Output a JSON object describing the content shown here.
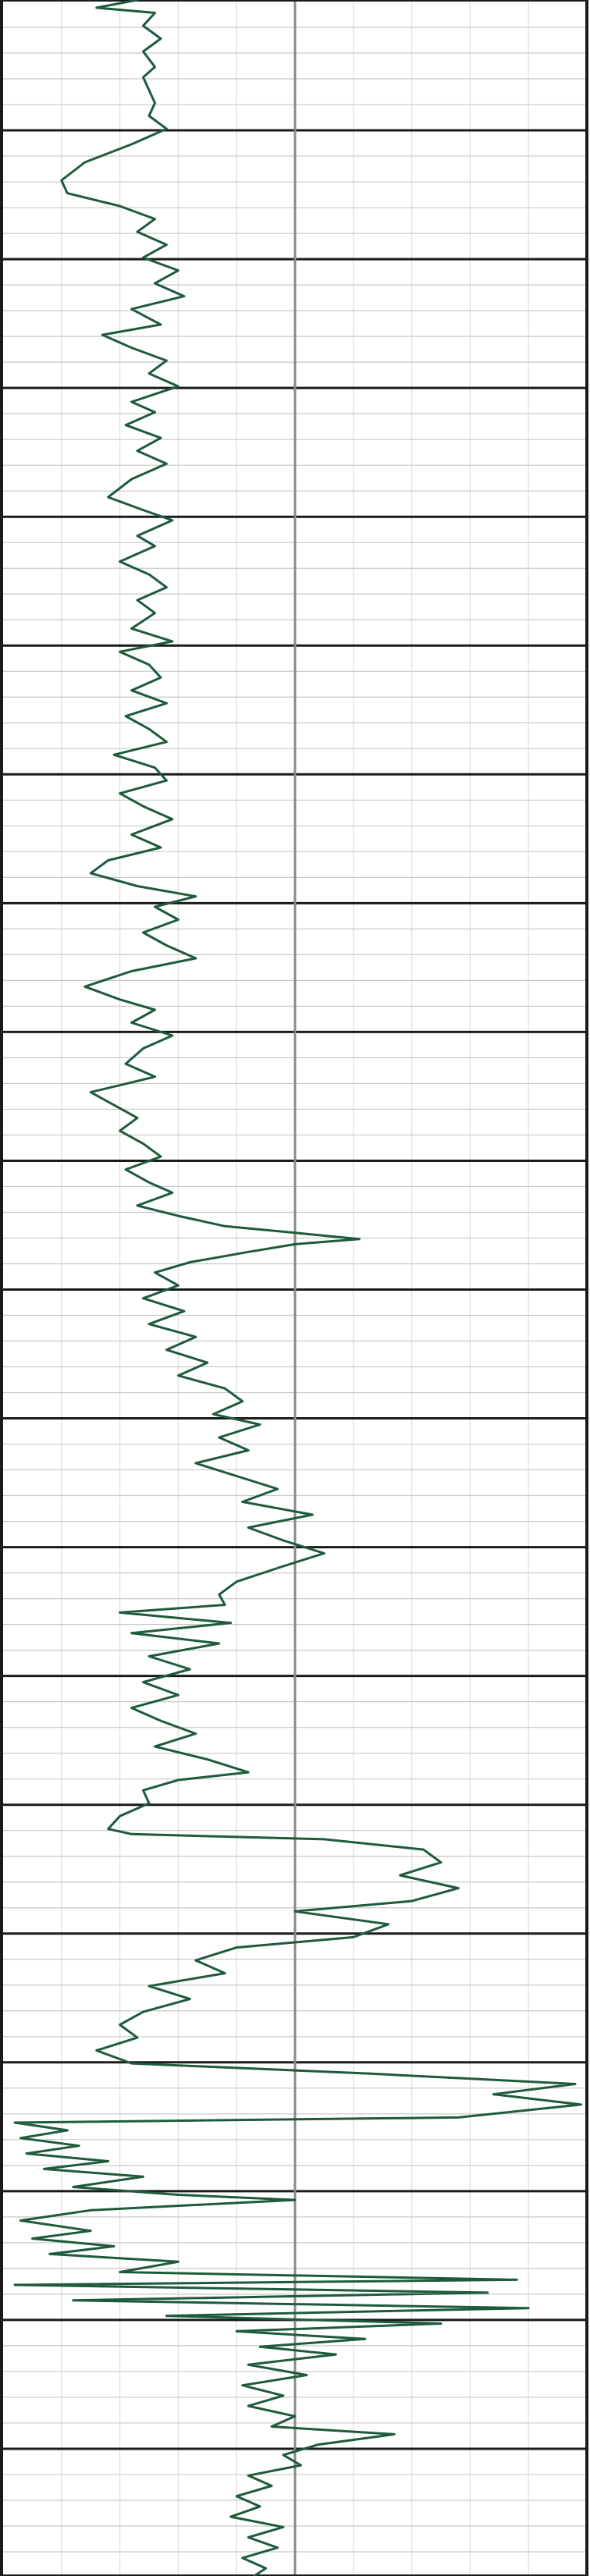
{
  "chart_data": {
    "type": "line",
    "title": "",
    "xlabel": "",
    "ylabel": "",
    "orientation": "vertical-depth",
    "xlim": [
      0,
      10
    ],
    "ylim": [
      0,
      100
    ],
    "grid": true,
    "colors": {
      "curve": "#1e5b3c",
      "major_grid": "#1a1a1a",
      "minor_grid": "#c9c9c9",
      "vertical_grid": "#dedede",
      "center_line": "#8a8a8a",
      "background": "#ffffff"
    },
    "series": [
      {
        "values": [
          [
            2.3,
            0.0
          ],
          [
            1.6,
            0.3
          ],
          [
            2.6,
            0.5
          ],
          [
            2.4,
            1.0
          ],
          [
            2.7,
            1.5
          ],
          [
            2.4,
            2.0
          ],
          [
            2.6,
            2.6
          ],
          [
            2.4,
            3.0
          ],
          [
            2.5,
            3.5
          ],
          [
            2.6,
            4.0
          ],
          [
            2.5,
            4.5
          ],
          [
            2.8,
            5.0
          ],
          [
            2.2,
            5.6
          ],
          [
            1.4,
            6.3
          ],
          [
            1.0,
            7.0
          ],
          [
            1.1,
            7.5
          ],
          [
            2.0,
            8.0
          ],
          [
            2.6,
            8.5
          ],
          [
            2.3,
            9.0
          ],
          [
            2.8,
            9.5
          ],
          [
            2.4,
            10.0
          ],
          [
            3.0,
            10.5
          ],
          [
            2.6,
            11.0
          ],
          [
            3.1,
            11.5
          ],
          [
            2.2,
            12.0
          ],
          [
            2.7,
            12.6
          ],
          [
            1.7,
            13.0
          ],
          [
            2.2,
            13.5
          ],
          [
            2.8,
            14.0
          ],
          [
            2.5,
            14.5
          ],
          [
            3.0,
            15.0
          ],
          [
            2.2,
            15.6
          ],
          [
            2.6,
            16.0
          ],
          [
            2.1,
            16.5
          ],
          [
            2.7,
            17.0
          ],
          [
            2.3,
            17.5
          ],
          [
            2.8,
            18.0
          ],
          [
            2.2,
            18.6
          ],
          [
            1.8,
            19.3
          ],
          [
            2.4,
            19.8
          ],
          [
            2.9,
            20.2
          ],
          [
            2.3,
            20.8
          ],
          [
            2.6,
            21.2
          ],
          [
            2.0,
            21.8
          ],
          [
            2.5,
            22.3
          ],
          [
            2.8,
            22.8
          ],
          [
            2.3,
            23.3
          ],
          [
            2.6,
            23.8
          ],
          [
            2.2,
            24.4
          ],
          [
            2.9,
            24.9
          ],
          [
            2.0,
            25.3
          ],
          [
            2.5,
            25.8
          ],
          [
            2.7,
            26.3
          ],
          [
            2.2,
            26.8
          ],
          [
            2.8,
            27.3
          ],
          [
            2.1,
            27.8
          ],
          [
            2.5,
            28.3
          ],
          [
            2.8,
            28.8
          ],
          [
            1.9,
            29.3
          ],
          [
            2.6,
            29.8
          ],
          [
            2.8,
            30.3
          ],
          [
            2.0,
            30.8
          ],
          [
            2.4,
            31.3
          ],
          [
            2.9,
            31.8
          ],
          [
            2.2,
            32.4
          ],
          [
            2.7,
            32.9
          ],
          [
            1.8,
            33.4
          ],
          [
            1.5,
            33.9
          ],
          [
            2.3,
            34.4
          ],
          [
            3.3,
            34.8
          ],
          [
            2.6,
            35.2
          ],
          [
            3.0,
            35.7
          ],
          [
            2.4,
            36.2
          ],
          [
            2.8,
            36.7
          ],
          [
            3.3,
            37.2
          ],
          [
            2.2,
            37.7
          ],
          [
            1.4,
            38.3
          ],
          [
            2.0,
            38.8
          ],
          [
            2.6,
            39.2
          ],
          [
            2.2,
            39.7
          ],
          [
            2.9,
            40.2
          ],
          [
            2.4,
            40.7
          ],
          [
            2.1,
            41.3
          ],
          [
            2.6,
            41.8
          ],
          [
            1.5,
            42.4
          ],
          [
            1.9,
            42.9
          ],
          [
            2.3,
            43.4
          ],
          [
            2.0,
            43.9
          ],
          [
            2.4,
            44.4
          ],
          [
            2.7,
            44.9
          ],
          [
            2.1,
            45.4
          ],
          [
            2.5,
            45.9
          ],
          [
            2.9,
            46.3
          ],
          [
            2.3,
            46.8
          ],
          [
            3.0,
            47.2
          ],
          [
            3.8,
            47.6
          ],
          [
            5.2,
            47.9
          ],
          [
            6.1,
            48.1
          ],
          [
            5.0,
            48.3
          ],
          [
            4.2,
            48.6
          ],
          [
            3.2,
            49.0
          ],
          [
            2.6,
            49.4
          ],
          [
            3.0,
            49.9
          ],
          [
            2.4,
            50.4
          ],
          [
            3.1,
            50.9
          ],
          [
            2.5,
            51.4
          ],
          [
            3.3,
            51.9
          ],
          [
            2.8,
            52.4
          ],
          [
            3.5,
            52.9
          ],
          [
            3.0,
            53.4
          ],
          [
            3.8,
            53.9
          ],
          [
            4.1,
            54.4
          ],
          [
            3.6,
            54.9
          ],
          [
            4.4,
            55.3
          ],
          [
            3.7,
            55.8
          ],
          [
            4.2,
            56.3
          ],
          [
            3.3,
            56.8
          ],
          [
            4.0,
            57.3
          ],
          [
            4.7,
            57.8
          ],
          [
            4.1,
            58.3
          ],
          [
            5.3,
            58.8
          ],
          [
            4.2,
            59.3
          ],
          [
            4.8,
            59.8
          ],
          [
            5.5,
            60.3
          ],
          [
            4.8,
            60.8
          ],
          [
            4.0,
            61.4
          ],
          [
            3.7,
            61.9
          ],
          [
            3.8,
            62.3
          ],
          [
            2.0,
            62.6
          ],
          [
            3.9,
            63.0
          ],
          [
            2.2,
            63.4
          ],
          [
            3.7,
            63.8
          ],
          [
            2.5,
            64.3
          ],
          [
            3.2,
            64.8
          ],
          [
            2.4,
            65.3
          ],
          [
            3.0,
            65.8
          ],
          [
            2.2,
            66.3
          ],
          [
            2.7,
            66.8
          ],
          [
            3.3,
            67.3
          ],
          [
            2.6,
            67.8
          ],
          [
            3.5,
            68.3
          ],
          [
            4.2,
            68.8
          ],
          [
            3.0,
            69.1
          ],
          [
            2.4,
            69.5
          ],
          [
            2.5,
            70.0
          ],
          [
            2.0,
            70.5
          ],
          [
            1.8,
            71.0
          ],
          [
            2.2,
            71.2
          ],
          [
            5.5,
            71.4
          ],
          [
            7.2,
            71.8
          ],
          [
            7.5,
            72.3
          ],
          [
            6.8,
            72.8
          ],
          [
            7.8,
            73.3
          ],
          [
            7.0,
            73.8
          ],
          [
            5.0,
            74.2
          ],
          [
            6.6,
            74.7
          ],
          [
            6.0,
            75.2
          ],
          [
            4.0,
            75.6
          ],
          [
            3.3,
            76.1
          ],
          [
            3.8,
            76.6
          ],
          [
            2.5,
            77.1
          ],
          [
            3.2,
            77.6
          ],
          [
            2.4,
            78.1
          ],
          [
            2.0,
            78.6
          ],
          [
            2.3,
            79.1
          ],
          [
            1.6,
            79.6
          ],
          [
            2.2,
            80.1
          ],
          [
            6.3,
            80.5
          ],
          [
            9.8,
            80.9
          ],
          [
            8.4,
            81.3
          ],
          [
            9.9,
            81.7
          ],
          [
            7.8,
            82.2
          ],
          [
            0.2,
            82.4
          ],
          [
            1.1,
            82.7
          ],
          [
            0.3,
            83.0
          ],
          [
            1.3,
            83.3
          ],
          [
            0.4,
            83.6
          ],
          [
            1.8,
            83.9
          ],
          [
            0.7,
            84.2
          ],
          [
            2.4,
            84.5
          ],
          [
            1.2,
            84.9
          ],
          [
            3.0,
            85.2
          ],
          [
            5.0,
            85.4
          ],
          [
            1.5,
            85.8
          ],
          [
            0.3,
            86.2
          ],
          [
            1.5,
            86.6
          ],
          [
            0.5,
            86.9
          ],
          [
            1.9,
            87.2
          ],
          [
            0.8,
            87.5
          ],
          [
            3.0,
            87.8
          ],
          [
            2.0,
            88.2
          ],
          [
            8.8,
            88.5
          ],
          [
            0.2,
            88.7
          ],
          [
            8.3,
            89.0
          ],
          [
            1.2,
            89.3
          ],
          [
            9.0,
            89.6
          ],
          [
            2.8,
            89.9
          ],
          [
            7.5,
            90.2
          ],
          [
            4.0,
            90.5
          ],
          [
            6.2,
            90.8
          ],
          [
            4.4,
            91.1
          ],
          [
            5.7,
            91.4
          ],
          [
            4.2,
            91.8
          ],
          [
            5.2,
            92.2
          ],
          [
            4.1,
            92.6
          ],
          [
            4.8,
            93.0
          ],
          [
            4.2,
            93.4
          ],
          [
            5.0,
            93.8
          ],
          [
            4.6,
            94.2
          ],
          [
            6.7,
            94.5
          ],
          [
            5.4,
            94.9
          ],
          [
            4.8,
            95.3
          ],
          [
            5.1,
            95.7
          ],
          [
            4.2,
            96.1
          ],
          [
            4.6,
            96.5
          ],
          [
            4.0,
            96.9
          ],
          [
            4.4,
            97.3
          ],
          [
            3.9,
            97.7
          ],
          [
            4.8,
            98.1
          ],
          [
            4.2,
            98.5
          ],
          [
            4.7,
            98.9
          ],
          [
            4.1,
            99.3
          ],
          [
            4.5,
            99.7
          ],
          [
            4.3,
            100.0
          ]
        ]
      }
    ]
  }
}
